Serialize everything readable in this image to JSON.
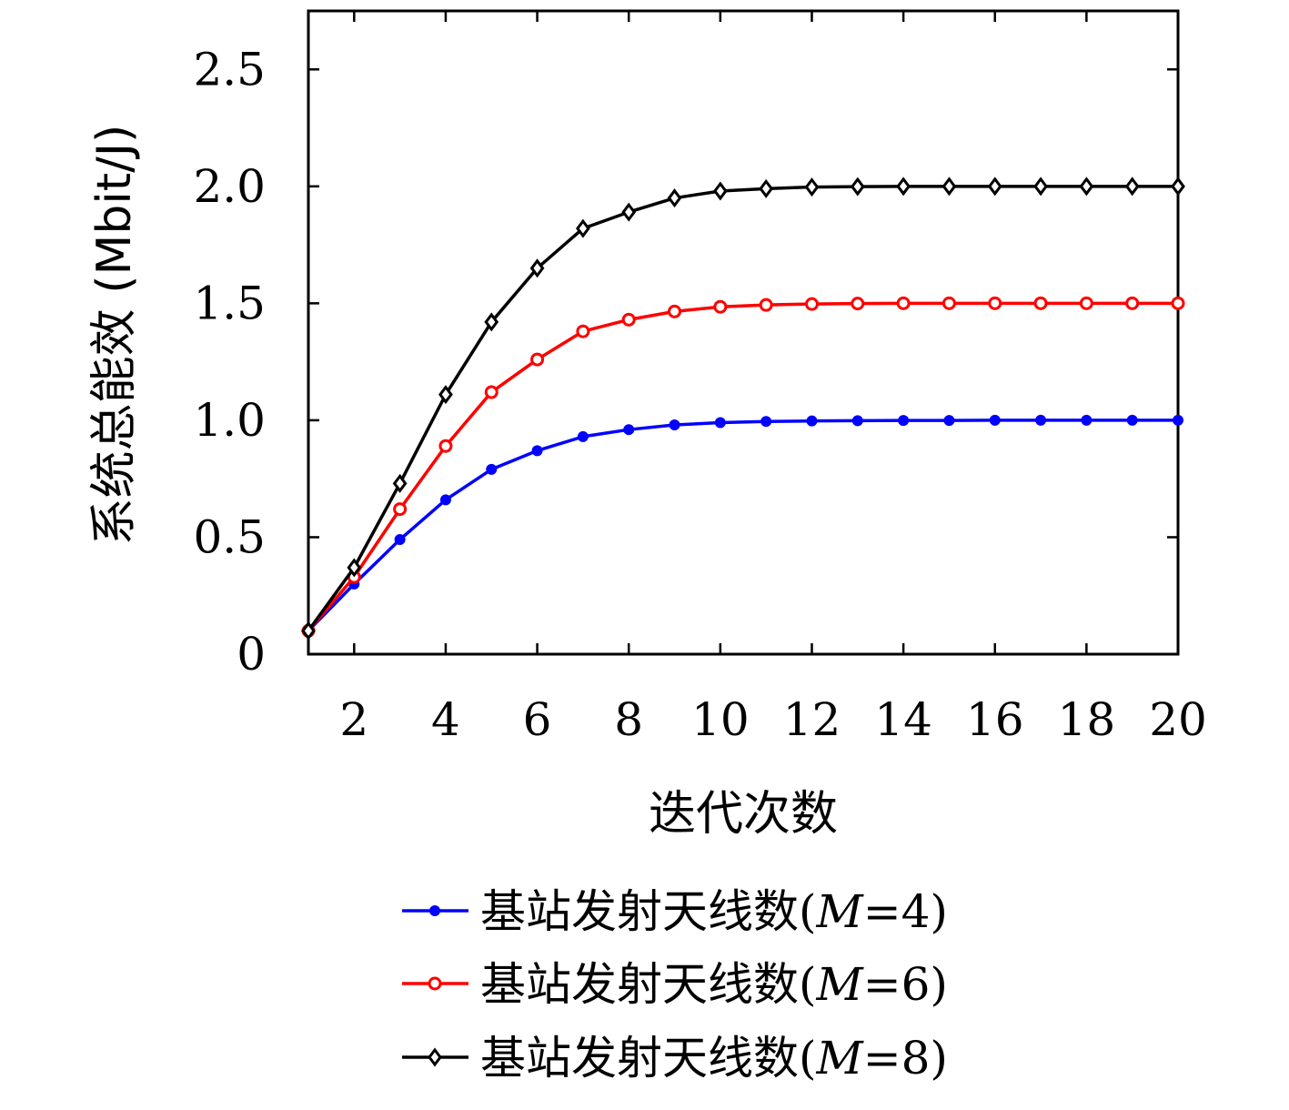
{
  "chart_data": {
    "type": "line",
    "title": "",
    "xlabel": "迭代次数",
    "ylabel": "系统总能效 (Mbit/J)",
    "xlim": [
      1,
      20
    ],
    "ylim": [
      0,
      2.75
    ],
    "x_ticks": [
      2,
      4,
      6,
      8,
      10,
      12,
      14,
      16,
      18,
      20
    ],
    "x_tick_labels": [
      "2",
      "4",
      "6",
      "8",
      "10",
      "12",
      "14",
      "16",
      "18",
      "20"
    ],
    "y_ticks": [
      0,
      0.5,
      1.0,
      1.5,
      2.0,
      2.5
    ],
    "y_tick_labels": [
      "0",
      "0.5",
      "1.0",
      "1.5",
      "2.0",
      "2.5"
    ],
    "grid": false,
    "legend_position": "bottom-center",
    "x": [
      1,
      2,
      3,
      4,
      5,
      6,
      7,
      8,
      9,
      10,
      11,
      12,
      13,
      14,
      15,
      16,
      17,
      18,
      19,
      20
    ],
    "series": [
      {
        "name": "基站发射天线数(M=4)",
        "name_prefix": "基站发射天线数(",
        "name_var": "M",
        "name_suffix": "=4)",
        "color": "#0000ff",
        "marker": "dot",
        "values": [
          0.1,
          0.3,
          0.49,
          0.66,
          0.79,
          0.87,
          0.93,
          0.96,
          0.98,
          0.99,
          0.995,
          0.997,
          0.998,
          0.999,
          0.999,
          1.0,
          1.0,
          1.0,
          1.0,
          1.0
        ]
      },
      {
        "name": "基站发射天线数(M=6)",
        "name_prefix": "基站发射天线数(",
        "name_var": "M",
        "name_suffix": "=6)",
        "color": "#ff0000",
        "marker": "circle",
        "values": [
          0.1,
          0.33,
          0.62,
          0.89,
          1.12,
          1.26,
          1.38,
          1.43,
          1.465,
          1.485,
          1.493,
          1.497,
          1.499,
          1.5,
          1.5,
          1.5,
          1.5,
          1.5,
          1.5,
          1.5
        ]
      },
      {
        "name": "基站发射天线数(M=8)",
        "name_prefix": "基站发射天线数(",
        "name_var": "M",
        "name_suffix": "=8)",
        "color": "#000000",
        "marker": "diamond",
        "values": [
          0.1,
          0.37,
          0.73,
          1.11,
          1.42,
          1.65,
          1.82,
          1.89,
          1.95,
          1.98,
          1.99,
          1.997,
          1.999,
          2.0,
          2.0,
          2.0,
          2.0,
          2.0,
          2.0,
          2.0
        ]
      }
    ]
  }
}
